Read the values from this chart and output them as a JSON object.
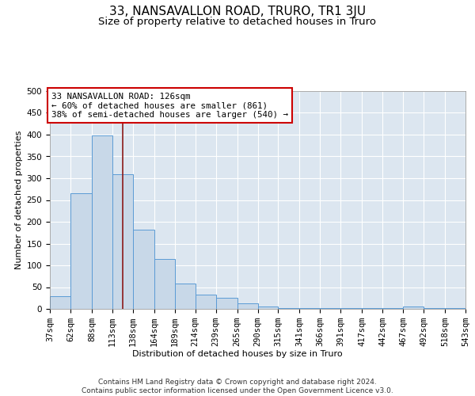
{
  "title": "33, NANSAVALLON ROAD, TRURO, TR1 3JU",
  "subtitle": "Size of property relative to detached houses in Truro",
  "xlabel": "Distribution of detached houses by size in Truro",
  "ylabel": "Number of detached properties",
  "bar_color": "#c8d8e8",
  "bar_edge_color": "#5b9bd5",
  "background_color": "#dce6f0",
  "grid_color": "#ffffff",
  "vline_x": 126,
  "vline_color": "#8b1a1a",
  "annotation_line1": "33 NANSAVALLON ROAD: 126sqm",
  "annotation_line2": "← 60% of detached houses are smaller (861)",
  "annotation_line3": "38% of semi-detached houses are larger (540) →",
  "annotation_box_color": "#ffffff",
  "annotation_box_edge": "#cc0000",
  "bin_edges": [
    37,
    62,
    88,
    113,
    138,
    164,
    189,
    214,
    239,
    265,
    290,
    315,
    341,
    366,
    391,
    417,
    442,
    467,
    492,
    518,
    543
  ],
  "bar_heights": [
    30,
    265,
    398,
    310,
    182,
    115,
    58,
    33,
    25,
    13,
    6,
    2,
    1,
    1,
    1,
    1,
    1,
    5,
    1,
    1
  ],
  "ylim": [
    0,
    500
  ],
  "yticks": [
    0,
    50,
    100,
    150,
    200,
    250,
    300,
    350,
    400,
    450,
    500
  ],
  "footer": "Contains HM Land Registry data © Crown copyright and database right 2024.\nContains public sector information licensed under the Open Government Licence v3.0.",
  "title_fontsize": 11,
  "subtitle_fontsize": 9.5,
  "label_fontsize": 8,
  "tick_fontsize": 7.5,
  "footer_fontsize": 6.5
}
